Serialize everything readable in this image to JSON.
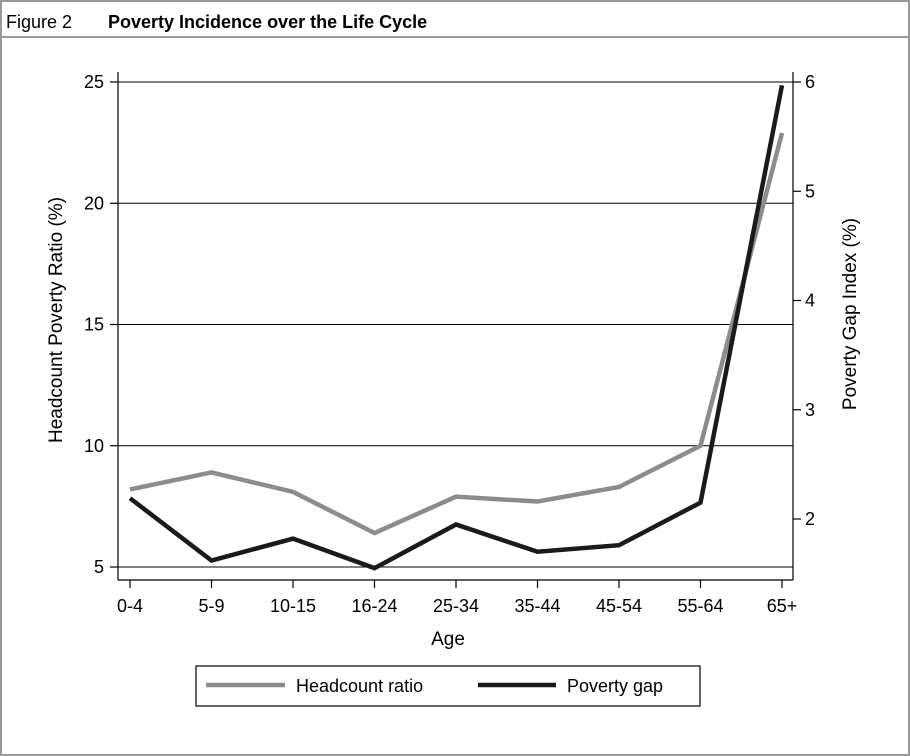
{
  "figure": {
    "label": "Figure 2",
    "title": "Poverty Incidence over the Life Cycle"
  },
  "chart_data": {
    "type": "line",
    "title": "Poverty Incidence over the Life Cycle",
    "xlabel": "Age",
    "ylabel": "Headcount Poverty Ratio (%)",
    "y2label": "Poverty Gap Index (%)",
    "categories": [
      "0-4",
      "5-9",
      "10-15",
      "16-24",
      "25-34",
      "35-44",
      "45-54",
      "55-64",
      "65+"
    ],
    "ylim": [
      5,
      25
    ],
    "yticks": [
      "5",
      "10",
      "15",
      "20",
      "25"
    ],
    "y2lim": [
      1.55,
      6
    ],
    "y2ticks": [
      "2",
      "3",
      "4",
      "5",
      "6"
    ],
    "grid": "horizontal",
    "legend_position": "bottom",
    "series": [
      {
        "name": "Headcount ratio",
        "axis": "left",
        "color": "#8c8c8c",
        "values": [
          8.2,
          8.9,
          8.1,
          6.4,
          7.9,
          7.7,
          8.3,
          10.0,
          22.9
        ]
      },
      {
        "name": "Poverty gap",
        "axis": "right",
        "color": "#1a1a1a",
        "values": [
          2.19,
          1.62,
          1.82,
          1.55,
          1.95,
          1.7,
          1.76,
          2.15,
          5.97
        ]
      }
    ]
  }
}
